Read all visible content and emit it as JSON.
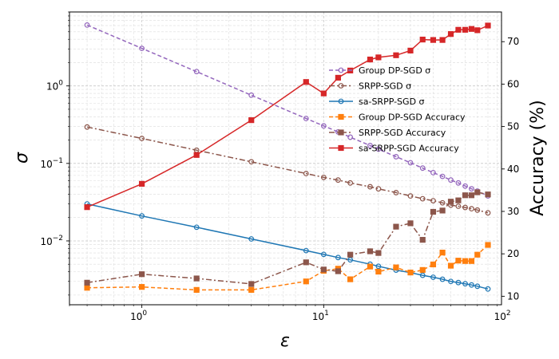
{
  "chart_data": {
    "type": "line",
    "title": "",
    "xlabel": "ε",
    "ylabel_left": "σ",
    "ylabel_right": "Accuracy (%)",
    "x_scale": "log",
    "y_left_scale": "log",
    "xlim": [
      0.4,
      95
    ],
    "ylim_left": [
      0.0015,
      9
    ],
    "ylim_right": [
      8,
      77
    ],
    "x_ticks": [
      {
        "value": 1,
        "base": "10",
        "exp": "0"
      },
      {
        "value": 10,
        "base": "10",
        "exp": "1"
      },
      {
        "value": 100,
        "base": "10",
        "exp": "2"
      }
    ],
    "y_left_ticks": [
      {
        "value": 0.01,
        "base": "10",
        "exp": "−2"
      },
      {
        "value": 0.1,
        "base": "10",
        "exp": "−1"
      },
      {
        "value": 1,
        "base": "10",
        "exp": "0"
      }
    ],
    "y_right_ticks": [
      10,
      20,
      30,
      40,
      50,
      60,
      70
    ],
    "grid": true,
    "legend_position": "upper-center-right",
    "series": [
      {
        "name": "Group DP-SGD σ",
        "axis": "left",
        "color": "#9467bd",
        "dash": "dashed",
        "marker": "open-circle",
        "x": [
          0.5,
          1,
          2,
          4,
          8,
          10,
          12,
          14,
          18,
          20,
          25,
          30,
          35,
          40,
          45,
          50,
          55,
          60,
          65,
          70,
          80
        ],
        "y": [
          6.1,
          3.05,
          1.53,
          0.76,
          0.38,
          0.305,
          0.255,
          0.218,
          0.17,
          0.153,
          0.122,
          0.102,
          0.087,
          0.076,
          0.068,
          0.061,
          0.056,
          0.051,
          0.047,
          0.044,
          0.038
        ]
      },
      {
        "name": "SRPP-SGD σ",
        "axis": "left",
        "color": "#8c564b",
        "dash": "dashdot",
        "marker": "open-circle",
        "x": [
          0.5,
          1,
          2,
          4,
          8,
          10,
          12,
          14,
          18,
          20,
          25,
          30,
          35,
          40,
          45,
          50,
          55,
          60,
          65,
          70,
          80
        ],
        "y": [
          0.295,
          0.21,
          0.148,
          0.105,
          0.074,
          0.066,
          0.061,
          0.056,
          0.05,
          0.047,
          0.042,
          0.038,
          0.035,
          0.033,
          0.031,
          0.029,
          0.028,
          0.027,
          0.026,
          0.025,
          0.023
        ]
      },
      {
        "name": "sa-SRPP-SGD σ",
        "axis": "left",
        "color": "#1f77b4",
        "dash": "solid",
        "marker": "open-circle",
        "x": [
          0.5,
          1,
          2,
          4,
          8,
          10,
          12,
          14,
          18,
          20,
          25,
          30,
          35,
          40,
          45,
          50,
          55,
          60,
          65,
          70,
          80
        ],
        "y": [
          0.03,
          0.021,
          0.015,
          0.0106,
          0.0075,
          0.0067,
          0.0061,
          0.0057,
          0.005,
          0.0047,
          0.0042,
          0.0039,
          0.0036,
          0.0034,
          0.0032,
          0.003,
          0.0029,
          0.0028,
          0.0027,
          0.0026,
          0.0024
        ]
      },
      {
        "name": "Group DP-SGD Accuracy",
        "axis": "right",
        "color": "#ff7f0e",
        "dash": "dashed",
        "marker": "square",
        "x": [
          0.5,
          1,
          2,
          4,
          8,
          10,
          12,
          14,
          18,
          20,
          25,
          30,
          35,
          40,
          45,
          50,
          55,
          60,
          65,
          70,
          80
        ],
        "y": [
          12,
          12.2,
          11.5,
          11.5,
          13.5,
          16,
          16.5,
          14,
          17,
          15.8,
          16.8,
          15.6,
          16.2,
          17.5,
          20.3,
          17.2,
          18.4,
          18.3,
          18.3,
          19.8,
          22.1
        ]
      },
      {
        "name": "SRPP-SGD Accuracy",
        "axis": "right",
        "color": "#8c564b",
        "dash": "dashdot",
        "marker": "square",
        "x": [
          0.5,
          1,
          2,
          4,
          8,
          10,
          12,
          14,
          18,
          20,
          25,
          30,
          35,
          40,
          45,
          50,
          55,
          60,
          65,
          70,
          80
        ],
        "y": [
          13.2,
          15.2,
          14.2,
          12.9,
          18,
          16.3,
          15.9,
          19.8,
          20.6,
          20.2,
          26.4,
          27.2,
          23.3,
          29.9,
          30.2,
          32.3,
          32.6,
          33.8,
          33.8,
          34.5,
          34
        ]
      },
      {
        "name": "sa-SRPP-SGD Accuracy",
        "axis": "right",
        "color": "#d62728",
        "dash": "solid",
        "marker": "square",
        "x": [
          0.5,
          1,
          2,
          4,
          8,
          10,
          12,
          14,
          18,
          20,
          25,
          30,
          35,
          40,
          45,
          50,
          55,
          60,
          65,
          70,
          80
        ],
        "y": [
          31,
          36.5,
          43.3,
          51.5,
          60.5,
          57.8,
          61.5,
          63.2,
          65.8,
          66.3,
          66.8,
          67.9,
          70.5,
          70.4,
          70.4,
          71.8,
          72.8,
          72.8,
          73,
          72.7,
          73.8
        ]
      }
    ]
  }
}
